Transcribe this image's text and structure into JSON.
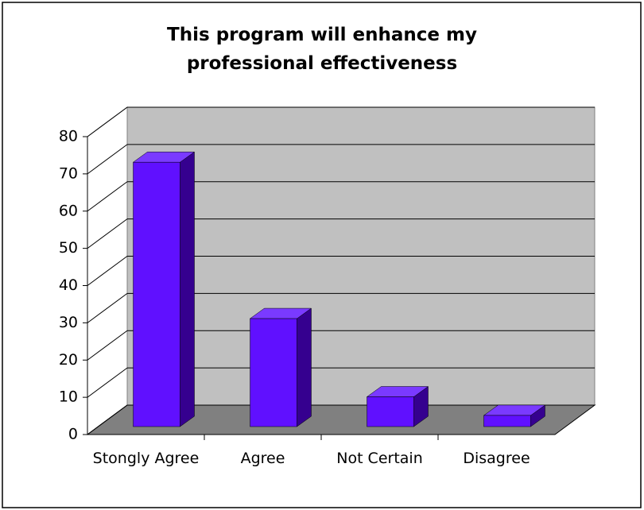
{
  "chart_data": {
    "type": "bar3d",
    "title": "This program will enhance my professional effectiveness",
    "categories": [
      "Stongly Agree",
      "Agree",
      "Not Certain",
      "Disagree"
    ],
    "values": [
      71,
      29,
      8,
      3
    ],
    "color": "#6010ff",
    "ylim": [
      0,
      80
    ],
    "yticks": [
      0,
      10,
      20,
      30,
      40,
      50,
      60,
      70,
      80
    ],
    "grid": true
  }
}
